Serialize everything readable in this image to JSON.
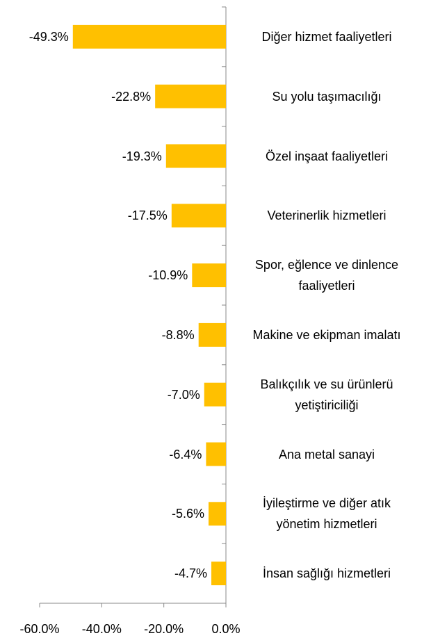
{
  "chart_data": {
    "type": "bar",
    "orientation": "horizontal",
    "categories": [
      "Diğer hizmet faaliyetleri",
      "Su yolu taşımacılığı",
      "Özel inşaat faaliyetleri",
      "Veterinerlik hizmetleri",
      "Spor, eğlence ve dinlence faaliyetleri",
      "Makine ve ekipman imalatı",
      "Balıkçılık ve su ürünlerü yetiştiriciliği",
      "Ana metal sanayi",
      "İyileştirme ve diğer atık yönetim hizmetleri",
      "İnsan sağlığı hizmetleri"
    ],
    "values": [
      -49.3,
      -22.8,
      -19.3,
      -17.5,
      -10.9,
      -8.8,
      -7.0,
      -6.4,
      -5.6,
      -4.7
    ],
    "value_labels": [
      "-49.3%",
      "-22.8%",
      "-19.3%",
      "-17.5%",
      "-10.9%",
      "-8.8%",
      "-7.0%",
      "-6.4%",
      "-5.6%",
      "-4.7%"
    ],
    "color": "#ffc000",
    "xlim": [
      -60,
      0
    ],
    "xticks": [
      {
        "value": -60,
        "label": "-60.0%"
      },
      {
        "value": -40,
        "label": "-40.0%"
      },
      {
        "value": -20,
        "label": "-20.0%"
      },
      {
        "value": 0,
        "label": "0.0%"
      }
    ]
  }
}
